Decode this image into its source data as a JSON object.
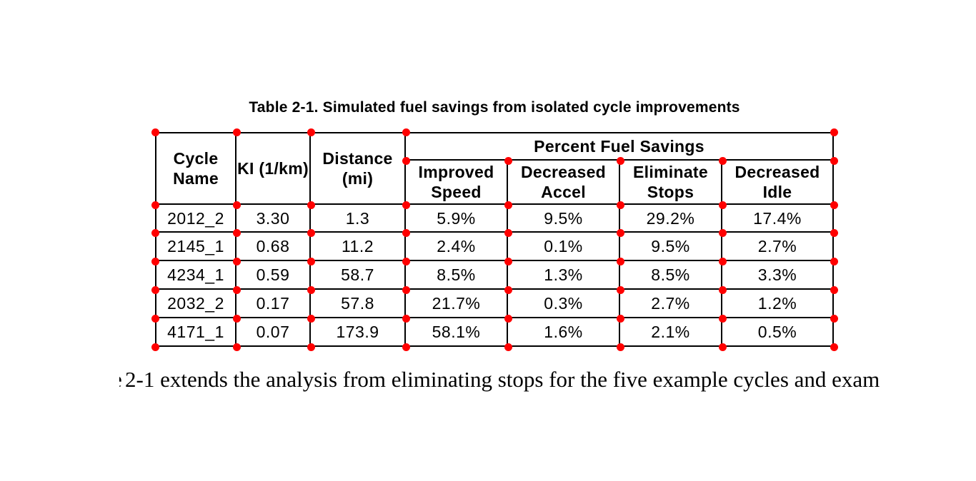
{
  "page": {
    "caption": "Table 2-1. Simulated fuel savings from isolated cycle improvements",
    "body_text": {
      "clipped_prefix": "e",
      "text": "2-1 extends the analysis from eliminating stops for the five example cycles and exam"
    }
  },
  "table": {
    "columns": [
      "Cycle Name",
      "KI (1/km)",
      "Distance (mi)"
    ],
    "group_header": "Percent Fuel Savings",
    "sub_columns": [
      "Improved Speed",
      "Decreased Accel",
      "Eliminate Stops",
      "Decreased Idle"
    ],
    "rows": [
      [
        "2012_2",
        "3.30",
        "1.3",
        "5.9%",
        "9.5%",
        "29.2%",
        "17.4%"
      ],
      [
        "2145_1",
        "0.68",
        "11.2",
        "2.4%",
        "0.1%",
        "9.5%",
        "2.7%"
      ],
      [
        "4234_1",
        "0.59",
        "58.7",
        "8.5%",
        "1.3%",
        "8.5%",
        "3.3%"
      ],
      [
        "2032_2",
        "0.17",
        "57.8",
        "21.7%",
        "0.3%",
        "2.7%",
        "1.2%"
      ],
      [
        "4171_1",
        "0.07",
        "173.9",
        "58.1%",
        "1.6%",
        "2.1%",
        "0.5%"
      ]
    ]
  },
  "colors": {
    "annotation_dot": "#ff0000",
    "grid_line": "#000000",
    "text": "#000000",
    "background": "#ffffff"
  }
}
